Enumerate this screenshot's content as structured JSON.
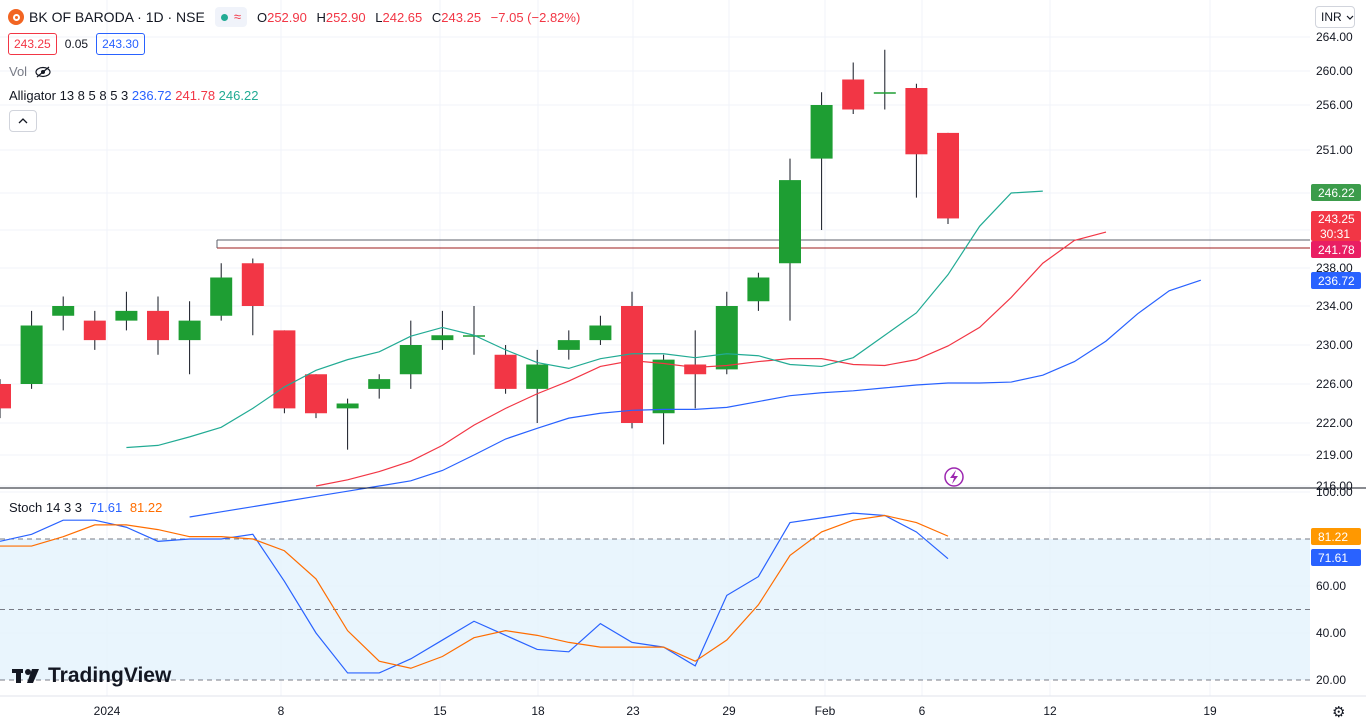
{
  "header": {
    "title": "BK OF BARODA · 1D · NSE",
    "wave_icon": "≈",
    "open_label": "O",
    "open": "252.90",
    "high_label": "H",
    "high": "252.90",
    "low_label": "L",
    "low": "242.65",
    "close_label": "C",
    "close": "243.25",
    "change": "−7.05 (−2.82%)"
  },
  "quote": {
    "bid": "243.25",
    "spread": "0.05",
    "ask": "243.30"
  },
  "volume": {
    "label": "Vol"
  },
  "currency": "INR",
  "brand": "TradingView",
  "chart_data": [
    {
      "type": "candlestick",
      "title": "BK OF BARODA · 1D · NSE",
      "x_ticks": [
        "2024",
        "8",
        "15",
        "18",
        "23",
        "29",
        "Feb",
        "6",
        "12",
        "19"
      ],
      "y_ticks": [
        "264.00",
        "260.00",
        "256.00",
        "251.00",
        "246.00",
        "242.00",
        "238.00",
        "234.00",
        "230.00",
        "226.00",
        "222.00",
        "219.00",
        "216.00"
      ],
      "ylim": [
        216,
        264
      ],
      "candles": [
        {
          "o": 226.0,
          "h": 226.5,
          "l": 222.5,
          "c": 223.5
        },
        {
          "o": 226.0,
          "h": 233.5,
          "l": 225.5,
          "c": 232.0
        },
        {
          "o": 233.0,
          "h": 235.0,
          "l": 231.5,
          "c": 234.0
        },
        {
          "o": 232.5,
          "h": 233.5,
          "l": 229.5,
          "c": 230.5
        },
        {
          "o": 232.5,
          "h": 235.5,
          "l": 231.5,
          "c": 233.5
        },
        {
          "o": 233.5,
          "h": 235.0,
          "l": 229.0,
          "c": 230.5
        },
        {
          "o": 230.5,
          "h": 234.5,
          "l": 227.0,
          "c": 232.5
        },
        {
          "o": 233.0,
          "h": 238.5,
          "l": 232.5,
          "c": 237.0
        },
        {
          "o": 238.5,
          "h": 239.0,
          "l": 231.0,
          "c": 234.0
        },
        {
          "o": 231.5,
          "h": 231.5,
          "l": 223.0,
          "c": 223.5
        },
        {
          "o": 227.0,
          "h": 227.0,
          "l": 222.5,
          "c": 223.0
        },
        {
          "o": 223.5,
          "h": 224.5,
          "l": 219.5,
          "c": 224.0
        },
        {
          "o": 225.5,
          "h": 227.0,
          "l": 224.5,
          "c": 226.5
        },
        {
          "o": 227.0,
          "h": 232.5,
          "l": 225.5,
          "c": 230.0
        },
        {
          "o": 230.5,
          "h": 233.5,
          "l": 229.5,
          "c": 231.0
        },
        {
          "o": 231.0,
          "h": 234.0,
          "l": 229.0,
          "c": 231.0
        },
        {
          "o": 229.0,
          "h": 230.0,
          "l": 225.0,
          "c": 225.5
        },
        {
          "o": 225.5,
          "h": 229.5,
          "l": 222.0,
          "c": 228.0
        },
        {
          "o": 229.5,
          "h": 231.5,
          "l": 228.5,
          "c": 230.5
        },
        {
          "o": 230.5,
          "h": 233.0,
          "l": 230.0,
          "c": 232.0
        },
        {
          "o": 234.0,
          "h": 235.5,
          "l": 221.5,
          "c": 222.0
        },
        {
          "o": 223.0,
          "h": 229.0,
          "l": 220.0,
          "c": 228.5
        },
        {
          "o": 228.0,
          "h": 231.5,
          "l": 223.5,
          "c": 227.0
        },
        {
          "o": 227.5,
          "h": 235.5,
          "l": 227.0,
          "c": 234.0
        },
        {
          "o": 234.5,
          "h": 237.5,
          "l": 233.5,
          "c": 237.0
        },
        {
          "o": 238.5,
          "h": 250.0,
          "l": 232.5,
          "c": 247.5
        },
        {
          "o": 250.0,
          "h": 257.5,
          "l": 242.0,
          "c": 256.0
        },
        {
          "o": 259.0,
          "h": 261.0,
          "l": 255.0,
          "c": 255.5
        },
        {
          "o": 257.5,
          "h": 262.5,
          "l": 255.5,
          "c": 257.5
        },
        {
          "o": 258.0,
          "h": 258.5,
          "l": 245.5,
          "c": 250.5
        },
        {
          "o": 252.9,
          "h": 252.9,
          "l": 242.65,
          "c": 243.25
        }
      ],
      "alligator": {
        "label": "Alligator",
        "params": "13 8 5 8 5 3",
        "jaw": {
          "value": "236.72",
          "color": "#2962ff",
          "values": [
            213.0,
            213.5,
            214.0,
            214.5,
            215.0,
            215.5,
            216.0,
            216.5,
            217.5,
            219.0,
            220.5,
            221.5,
            222.5,
            223.0,
            223.3,
            223.4,
            223.4,
            223.6,
            224.2,
            224.8,
            225.1,
            225.3,
            225.6,
            225.9,
            226.1,
            226.1,
            226.2,
            226.9,
            228.3,
            230.4,
            233.2,
            235.6,
            236.72
          ]
        },
        "teeth": {
          "value": "241.78",
          "color": "#f23645",
          "values": [
            216.0,
            216.6,
            217.4,
            218.4,
            219.9,
            221.8,
            223.5,
            225.0,
            226.3,
            227.8,
            228.4,
            228.1,
            227.7,
            227.9,
            228.3,
            228.6,
            228.6,
            228.0,
            227.9,
            228.5,
            229.9,
            231.8,
            234.9,
            238.5,
            240.9,
            241.78
          ]
        },
        "lips": {
          "value": "246.22",
          "color": "#22ab94",
          "values": [
            219.7,
            219.9,
            220.7,
            221.6,
            223.5,
            225.7,
            227.4,
            228.5,
            229.3,
            230.9,
            231.8,
            231.0,
            229.5,
            228.2,
            227.6,
            228.6,
            229.1,
            229.1,
            228.7,
            229.1,
            228.9,
            228.0,
            227.8,
            228.7,
            231.0,
            233.3,
            237.3,
            242.4,
            246.0,
            246.22
          ]
        },
        "colors": {
          "jaw": "#2962ff",
          "teeth": "#f23645",
          "lips": "#22ab94"
        }
      },
      "last_price": "243.25",
      "countdown": "30:31",
      "colors": {
        "up": "#1e9e33",
        "down": "#f23645",
        "last_price_bg": "#f23645"
      }
    },
    {
      "type": "line",
      "title": "Stoch",
      "params": "14 3 3",
      "y_ticks": [
        "100.00",
        "80.00",
        "60.00",
        "40.00",
        "20.00"
      ],
      "ylim": [
        20,
        100
      ],
      "bands": [
        20,
        50,
        80
      ],
      "series": [
        {
          "name": "%K",
          "value": "71.61",
          "color": "#2962ff",
          "values": [
            79,
            82,
            88,
            88,
            85,
            79,
            80,
            80,
            82,
            62,
            40,
            23,
            23,
            29,
            37,
            45,
            39,
            33,
            32,
            44,
            36,
            34,
            26,
            56,
            64,
            87,
            89,
            91,
            90,
            83,
            71.61
          ]
        },
        {
          "name": "%D",
          "value": "81.22",
          "color": "#ff6d00",
          "values": [
            77,
            77,
            81,
            86,
            86,
            84,
            81,
            81,
            80,
            75,
            63,
            41,
            28,
            25,
            30,
            38,
            41,
            39,
            36,
            34,
            34,
            34,
            28,
            37,
            52,
            73,
            83,
            88,
            90,
            87,
            81.22
          ]
        }
      ]
    }
  ]
}
